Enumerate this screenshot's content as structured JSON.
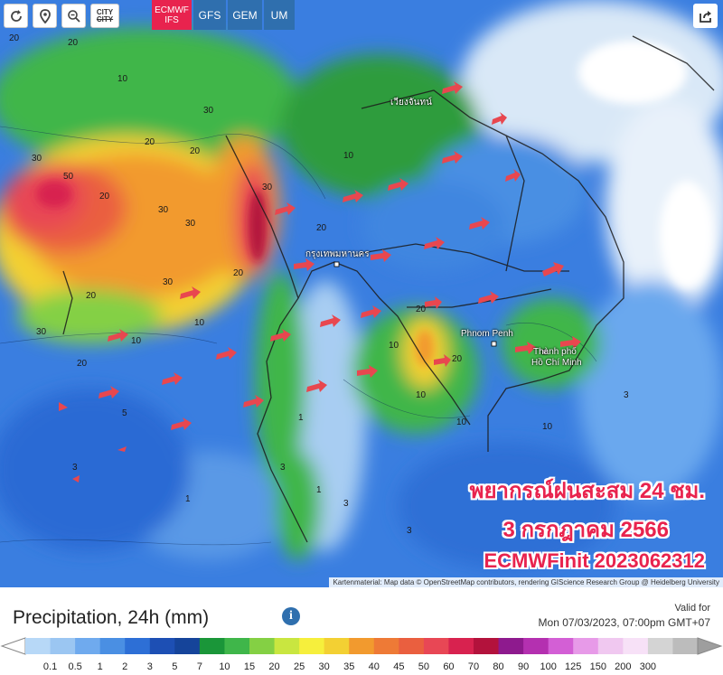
{
  "toolbar": {
    "refresh_icon": "refresh-icon",
    "location_icon": "location-pin-icon",
    "zoom_icon": "zoom-out-icon",
    "city_label_top": "CITY",
    "city_label_bottom": "CITY",
    "share_icon": "share-icon"
  },
  "models": [
    {
      "label": "ECMWF",
      "sublabel": "IFS",
      "active": true
    },
    {
      "label": "GFS",
      "active": false
    },
    {
      "label": "GEM",
      "active": false
    },
    {
      "label": "UM",
      "active": false
    }
  ],
  "map": {
    "cities": {
      "phnom_penh": "Phnom Penh",
      "hcm_line1": "Thành phố",
      "hcm_line2": "Hồ Chí Minh",
      "bangkok": "กรุงเทพมหานคร",
      "vientiane": "เวียงจันทน์"
    },
    "overlay": {
      "line1": "พยากรณ์ฝนสะสม 24 ชม.",
      "line2": "3 กรกฎาคม 2566",
      "line3": "ECMWFinit 2023062312"
    },
    "attribution": "Kartenmaterial: Map data © OpenStreetMap contributors, rendering GIScience Research Group @ Heidelberg University"
  },
  "legend": {
    "title": "Precipitation, 24h (mm)",
    "info_icon": "info-icon",
    "valid_for_label": "Valid for",
    "valid_time": "Mon 07/03/2023, 07:00pm GMT+07",
    "colors": [
      "#b7d8f7",
      "#9bc6f2",
      "#6faaee",
      "#4a8fe3",
      "#2d6fd6",
      "#1d4fb4",
      "#15449a",
      "#1a9639",
      "#3fb64a",
      "#84d044",
      "#c9e640",
      "#f6ef3c",
      "#f3d033",
      "#f29a2e",
      "#ee7a36",
      "#ea5f3f",
      "#e84755",
      "#d8224f",
      "#b3123c",
      "#8e1a8e",
      "#b430b0",
      "#d35fd5",
      "#e79ae8",
      "#f0c8f0",
      "#f7e1f7",
      "#d4d4d4",
      "#bcbcbc"
    ],
    "ticks": [
      "0.1",
      "0.5",
      "1",
      "2",
      "3",
      "5",
      "7",
      "10",
      "15",
      "20",
      "25",
      "30",
      "35",
      "40",
      "45",
      "50",
      "60",
      "70",
      "80",
      "90",
      "100",
      "125",
      "150",
      "200",
      "300"
    ]
  }
}
